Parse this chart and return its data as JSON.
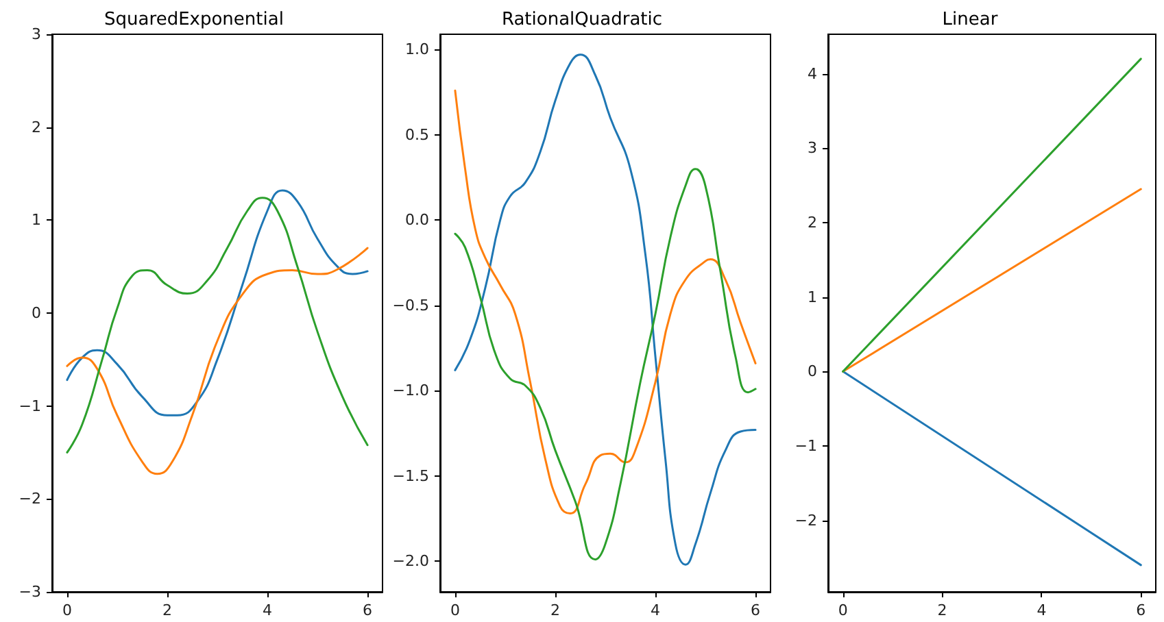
{
  "chart_data": [
    {
      "type": "line",
      "title": "SquaredExponential",
      "xlim": [
        -0.3,
        6.3
      ],
      "xticks": [
        0,
        2,
        4,
        6
      ],
      "ylim": [
        -3,
        3
      ],
      "yticks": [
        {
          "value": -3,
          "label": "−3"
        },
        {
          "value": -2,
          "label": "−2"
        },
        {
          "value": -1,
          "label": "−1"
        },
        0,
        1,
        2,
        3
      ],
      "grid": false,
      "marker": "none",
      "line_style": "solid",
      "series": [
        {
          "color": "#1f77b4",
          "x": [
            0,
            0.3,
            0.6,
            1.0,
            1.5,
            2.0,
            2.2,
            2.6,
            3.0,
            3.5,
            4.0,
            4.3,
            4.6,
            5.0,
            5.4,
            5.7,
            6
          ],
          "values": [
            -0.72,
            -0.48,
            -0.4,
            -0.55,
            -0.9,
            -1.1,
            -1.1,
            -0.95,
            -0.5,
            0.3,
            1.1,
            1.32,
            1.2,
            0.8,
            0.5,
            0.42,
            0.45
          ]
        },
        {
          "color": "#ff7f0e",
          "x": [
            0,
            0.3,
            0.6,
            1.0,
            1.5,
            1.8,
            2.1,
            2.5,
            3.0,
            3.5,
            4.0,
            4.5,
            5.0,
            5.4,
            6
          ],
          "values": [
            -0.57,
            -0.48,
            -0.6,
            -1.1,
            -1.6,
            -1.73,
            -1.6,
            -1.1,
            -0.3,
            0.2,
            0.42,
            0.46,
            0.42,
            0.47,
            0.7
          ]
        },
        {
          "color": "#2ca02c",
          "x": [
            0,
            0.3,
            0.7,
            1.0,
            1.3,
            1.6,
            2.0,
            2.4,
            2.8,
            3.2,
            3.6,
            3.9,
            4.2,
            4.6,
            5.0,
            5.5,
            6
          ],
          "values": [
            -1.5,
            -1.2,
            -0.5,
            0.05,
            0.4,
            0.46,
            0.3,
            0.21,
            0.35,
            0.7,
            1.1,
            1.24,
            1.1,
            0.5,
            -0.2,
            -0.9,
            -1.42
          ]
        }
      ]
    },
    {
      "type": "line",
      "title": "RationalQuadratic",
      "xlim": [
        -0.3,
        6.3
      ],
      "xticks": [
        0,
        2,
        4,
        6
      ],
      "ylim": [
        -2.18,
        1.09
      ],
      "yticks": [
        {
          "value": -2,
          "label": "−2.0"
        },
        {
          "value": -1.5,
          "label": "−1.5"
        },
        {
          "value": -1,
          "label": "−1.0"
        },
        {
          "value": -0.5,
          "label": "−0.5"
        },
        {
          "value": 0,
          "label": "0.0"
        },
        {
          "value": 0.5,
          "label": "0.5"
        },
        {
          "value": 1,
          "label": "1.0"
        }
      ],
      "grid": false,
      "marker": "none",
      "line_style": "solid",
      "series": [
        {
          "color": "#1f77b4",
          "x": [
            0,
            0.3,
            0.6,
            0.9,
            1.1,
            1.4,
            1.7,
            2.0,
            2.3,
            2.5,
            2.8,
            3.1,
            3.5,
            3.8,
            4.0,
            4.2,
            4.4,
            4.6,
            4.8,
            5.1,
            5.4,
            5.7,
            6
          ],
          "values": [
            -0.88,
            -0.7,
            -0.4,
            0.0,
            0.14,
            0.22,
            0.4,
            0.7,
            0.92,
            0.97,
            0.85,
            0.6,
            0.3,
            -0.2,
            -0.8,
            -1.4,
            -1.9,
            -2.02,
            -1.9,
            -1.6,
            -1.35,
            -1.24,
            -1.23
          ]
        },
        {
          "color": "#ff7f0e",
          "x": [
            0,
            0.2,
            0.4,
            0.6,
            0.9,
            1.2,
            1.5,
            1.8,
            2.1,
            2.3,
            2.6,
            2.9,
            3.1,
            3.4,
            3.6,
            4.0,
            4.3,
            4.6,
            5.0,
            5.1,
            5.4,
            5.7,
            6
          ],
          "values": [
            0.76,
            0.3,
            -0.05,
            -0.22,
            -0.38,
            -0.55,
            -0.95,
            -1.4,
            -1.68,
            -1.72,
            -1.55,
            -1.38,
            -1.37,
            -1.42,
            -1.35,
            -0.95,
            -0.55,
            -0.35,
            -0.24,
            -0.23,
            -0.35,
            -0.6,
            -0.84
          ]
        },
        {
          "color": "#2ca02c",
          "x": [
            0,
            0.2,
            0.5,
            0.8,
            1.1,
            1.4,
            1.7,
            2.0,
            2.4,
            2.8,
            3.0,
            3.3,
            3.7,
            4.0,
            4.3,
            4.6,
            4.8,
            5.0,
            5.3,
            5.6,
            5.85,
            6
          ],
          "values": [
            -0.08,
            -0.16,
            -0.45,
            -0.78,
            -0.93,
            -0.97,
            -1.1,
            -1.35,
            -1.65,
            -1.99,
            -1.9,
            -1.55,
            -0.95,
            -0.55,
            -0.1,
            0.2,
            0.3,
            0.2,
            -0.3,
            -0.8,
            -1.01,
            -0.99
          ]
        }
      ]
    },
    {
      "type": "line",
      "title": "Linear",
      "xlim": [
        -0.3,
        6.3
      ],
      "xticks": [
        0,
        2,
        4,
        6
      ],
      "ylim": [
        -2.96,
        4.53
      ],
      "yticks": [
        {
          "value": -2,
          "label": "−2"
        },
        {
          "value": -1,
          "label": "−1"
        },
        0,
        1,
        2,
        3,
        4
      ],
      "grid": false,
      "marker": "none",
      "line_style": "solid",
      "series": [
        {
          "color": "#1f77b4",
          "x": [
            0,
            6
          ],
          "values": [
            0,
            -2.6
          ]
        },
        {
          "color": "#ff7f0e",
          "x": [
            0,
            6
          ],
          "values": [
            0,
            2.45
          ]
        },
        {
          "color": "#2ca02c",
          "x": [
            0,
            6
          ],
          "values": [
            0,
            4.2
          ]
        }
      ]
    }
  ]
}
